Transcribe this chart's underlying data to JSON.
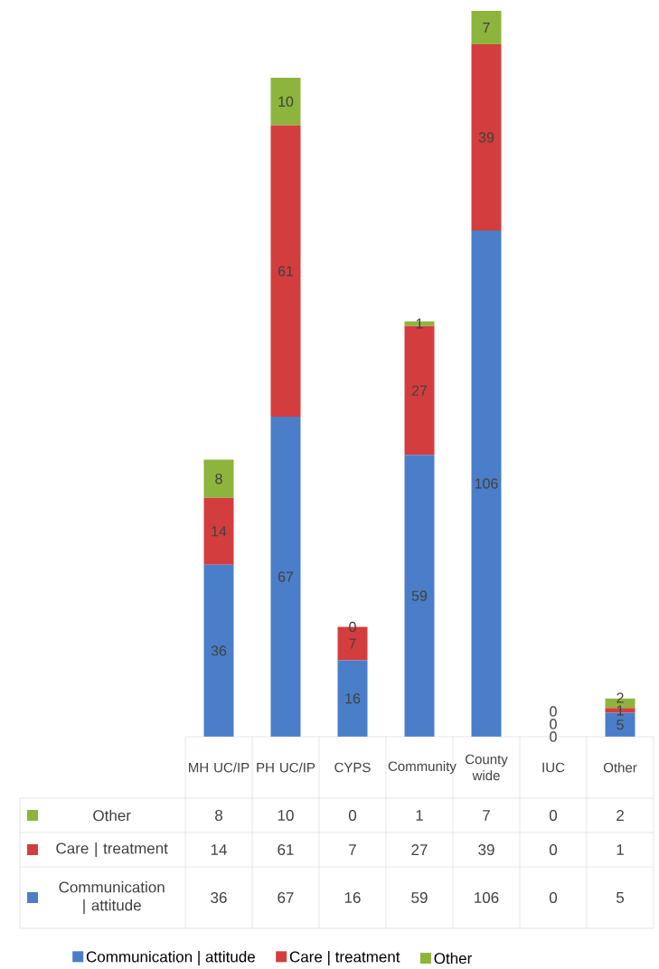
{
  "chart_data": {
    "type": "bar",
    "stacked": true,
    "categories": [
      "MH UC/IP",
      "PH UC/IP",
      "CYPS",
      "Community",
      "County wide",
      "IUC",
      "Other"
    ],
    "series": [
      {
        "name": "Communication | attitude",
        "color": "#4a7ec8",
        "values": [
          36,
          67,
          16,
          59,
          106,
          0,
          5
        ],
        "value_labels": [
          "36",
          "67",
          "16",
          "59",
          "106",
          "0",
          "5"
        ]
      },
      {
        "name": "Care | treatment",
        "color": "#d43d3d",
        "values": [
          14,
          61,
          7,
          27,
          39,
          0,
          1
        ],
        "value_labels": [
          "14",
          "61",
          "7",
          "27",
          "39",
          "0",
          "1"
        ]
      },
      {
        "name": "Other",
        "color": "#8db43c",
        "values": [
          8,
          10,
          0,
          1,
          7,
          0,
          2
        ],
        "value_labels": [
          "8",
          "10",
          "0",
          "1",
          "7",
          "0",
          "2"
        ]
      }
    ],
    "data_labels": true,
    "legend": "bottom"
  }
}
